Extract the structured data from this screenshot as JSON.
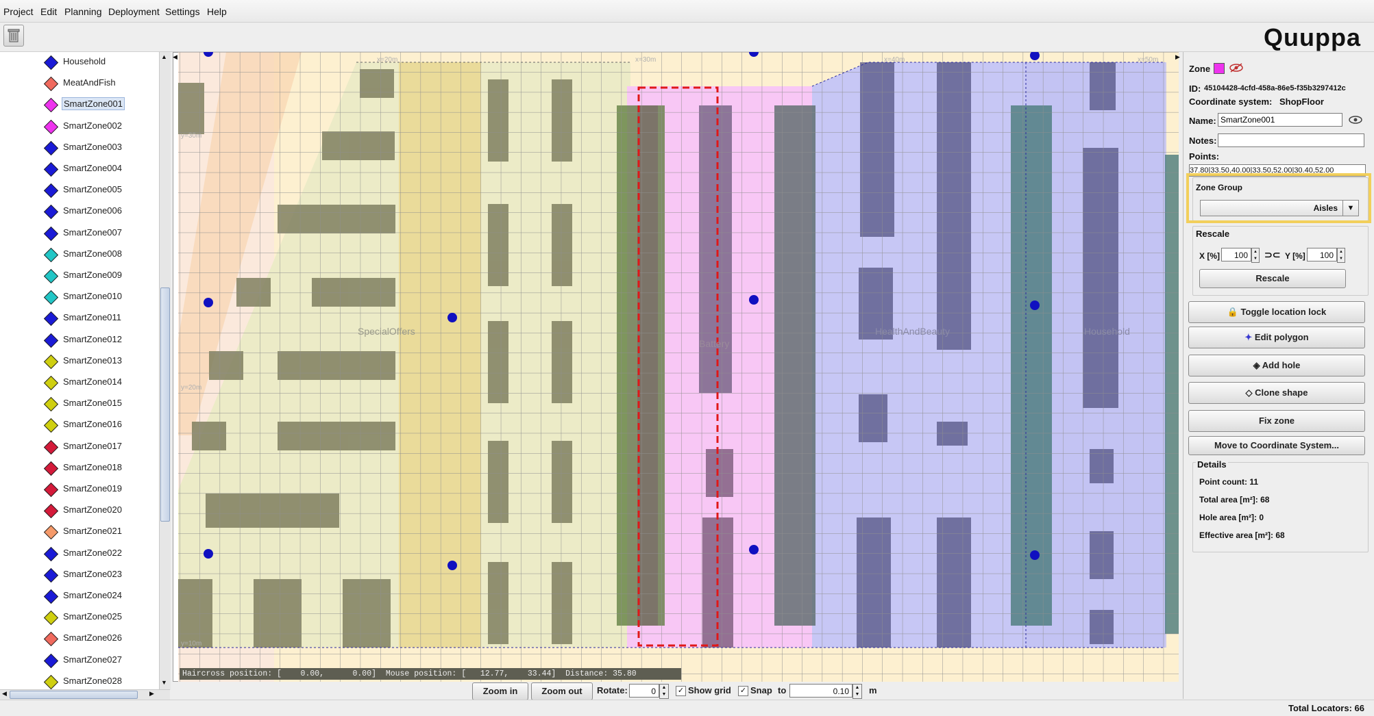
{
  "menu": [
    "Project",
    "Edit",
    "Planning",
    "Deployment",
    "Settings",
    "Help"
  ],
  "logo": "Quuppa",
  "tree": {
    "items": [
      {
        "label": "Household",
        "color": "#1a1ad6"
      },
      {
        "label": "MeatAndFish",
        "color": "#f06a5e"
      },
      {
        "label": "SmartZone001",
        "color": "#ee33ee",
        "selected": true
      },
      {
        "label": "SmartZone002",
        "color": "#ee33ee"
      },
      {
        "label": "SmartZone003",
        "color": "#1a1ad6"
      },
      {
        "label": "SmartZone004",
        "color": "#1a1ad6"
      },
      {
        "label": "SmartZone005",
        "color": "#1a1ad6"
      },
      {
        "label": "SmartZone006",
        "color": "#1a1ad6"
      },
      {
        "label": "SmartZone007",
        "color": "#1a1ad6"
      },
      {
        "label": "SmartZone008",
        "color": "#22c6c6"
      },
      {
        "label": "SmartZone009",
        "color": "#22c6c6"
      },
      {
        "label": "SmartZone010",
        "color": "#22c6c6"
      },
      {
        "label": "SmartZone011",
        "color": "#1a1ad6"
      },
      {
        "label": "SmartZone012",
        "color": "#1a1ad6"
      },
      {
        "label": "SmartZone013",
        "color": "#cfcf10"
      },
      {
        "label": "SmartZone014",
        "color": "#cfcf10"
      },
      {
        "label": "SmartZone015",
        "color": "#cfcf10"
      },
      {
        "label": "SmartZone016",
        "color": "#cfcf10"
      },
      {
        "label": "SmartZone017",
        "color": "#d41a3a"
      },
      {
        "label": "SmartZone018",
        "color": "#d41a3a"
      },
      {
        "label": "SmartZone019",
        "color": "#d41a3a"
      },
      {
        "label": "SmartZone020",
        "color": "#d41a3a"
      },
      {
        "label": "SmartZone021",
        "color": "#f59a6a"
      },
      {
        "label": "SmartZone022",
        "color": "#1a1ad6"
      },
      {
        "label": "SmartZone023",
        "color": "#1a1ad6"
      },
      {
        "label": "SmartZone024",
        "color": "#1a1ad6"
      },
      {
        "label": "SmartZone025",
        "color": "#cfcf10"
      },
      {
        "label": "SmartZone026",
        "color": "#f06a5e"
      },
      {
        "label": "SmartZone027",
        "color": "#1a1ad6"
      },
      {
        "label": "SmartZone028",
        "color": "#cfcf10"
      }
    ]
  },
  "map": {
    "zone_labels": [
      "SpecialOffers",
      "Battery",
      "HealthAndBeauty",
      "Household"
    ],
    "ruler_labels": [
      "x=20m",
      "x=30m",
      "x=40m",
      "x=50m",
      "y=30m",
      "y=20m",
      "y=10m"
    ]
  },
  "status": {
    "haircross_label": "Haircross position: [",
    "haircross_x": "0.00,",
    "haircross_y": "0.00]",
    "mouse_label": "Mouse position: [",
    "mouse_x": "12.77,",
    "mouse_y": "33.44]",
    "distance_label": "Distance: 35.80"
  },
  "controls": {
    "zoom_in": "Zoom in",
    "zoom_out": "Zoom out",
    "rotate_label": "Rotate:",
    "rotate_value": "0",
    "show_grid_label": "Show grid",
    "show_grid_checked": true,
    "snap_label": "Snap",
    "snap_checked": true,
    "to_label": "to",
    "snap_value": "0.10",
    "unit": "m"
  },
  "panel": {
    "zone_label": "Zone",
    "zone_color": "#ee33ee",
    "id_label": "ID:",
    "id_value": "45104428-4cfd-458a-86e5-f35b3297412c",
    "coord_label": "Coordinate system:",
    "coord_value": "ShopFloor",
    "name_label": "Name:",
    "name_value": "SmartZone001",
    "notes_label": "Notes:",
    "notes_value": "",
    "points_label": "Points:",
    "points_value": "37.80|33.50,40.00|33.50,52.00|30.40,52.00",
    "zone_group_title": "Zone Group",
    "zone_group_value": "Aisles",
    "rescale_title": "Rescale",
    "x_label": "X [%]",
    "x_value": "100",
    "y_label": "Y [%]",
    "y_value": "100",
    "rescale_button": "Rescale",
    "toggle_lock": "Toggle location lock",
    "edit_polygon": "Edit polygon",
    "add_hole": "Add hole",
    "clone_shape": "Clone shape",
    "fix_zone": "Fix zone",
    "move_coord": "Move to Coordinate System...",
    "details_title": "Details",
    "point_count": "Point count: 11",
    "total_area": "Total area [m²]: 68",
    "hole_area": "Hole area [m²]: 0",
    "effective_area": "Effective area [m²]: 68"
  },
  "footer": {
    "total_locators": "Total Locators: 66"
  }
}
